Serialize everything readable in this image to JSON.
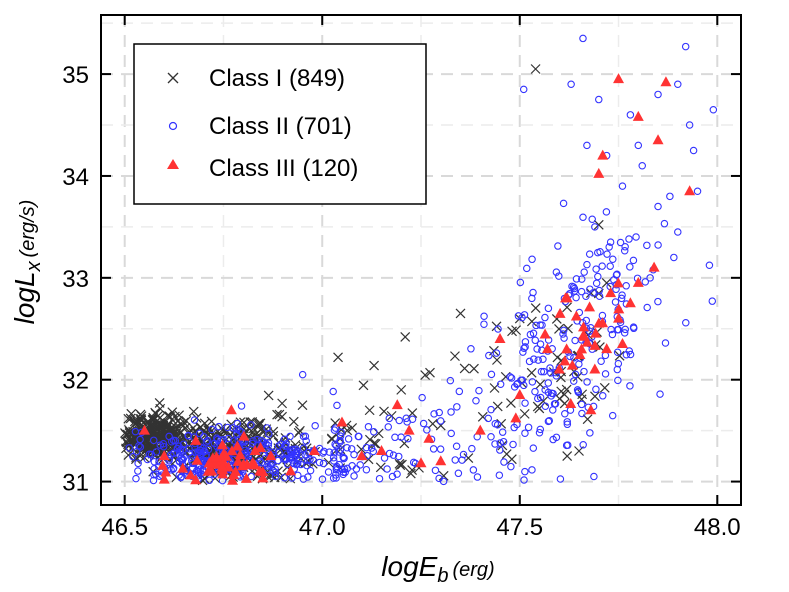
{
  "chart_data": {
    "type": "scatter",
    "title": "",
    "xlabel_main": "logE",
    "xlabel_sub": "b",
    "xlabel_unit": "(erg)",
    "ylabel_main": "logL",
    "ylabel_sub": "x",
    "ylabel_unit": "(erg/s)",
    "xlim": [
      46.44,
      48.06
    ],
    "ylim": [
      30.77,
      35.58
    ],
    "xticks": [
      46.5,
      47.0,
      47.5,
      48.0
    ],
    "xtick_labels": [
      "46.5",
      "47.0",
      "47.5",
      "48.0"
    ],
    "yticks": [
      31,
      32,
      33,
      34,
      35
    ],
    "ytick_labels": [
      "31",
      "32",
      "33",
      "34",
      "35"
    ],
    "grid": true,
    "legend_position": "top-left",
    "series": [
      {
        "name": "Class I (849)",
        "label": "Class I (849)",
        "marker": "x",
        "color": "#333333",
        "clusters": [
          {
            "cx": 46.58,
            "cy": 31.45,
            "sx": 0.05,
            "sy": 0.1,
            "n": 260
          },
          {
            "cx": 46.72,
            "cy": 31.35,
            "sx": 0.08,
            "sy": 0.15,
            "n": 170
          },
          {
            "cx": 46.85,
            "cy": 31.3,
            "sx": 0.07,
            "sy": 0.15,
            "n": 90
          },
          {
            "cx": 47.1,
            "cy": 31.35,
            "sx": 0.12,
            "sy": 0.25,
            "n": 40
          },
          {
            "cx": 47.45,
            "cy": 31.9,
            "sx": 0.1,
            "sy": 0.3,
            "n": 25
          },
          {
            "cx": 47.6,
            "cy": 32.3,
            "sx": 0.06,
            "sy": 0.35,
            "n": 30
          }
        ],
        "points": [
          [
            47.54,
            35.05
          ],
          [
            47.7,
            33.52
          ],
          [
            47.35,
            32.65
          ],
          [
            47.21,
            32.42
          ],
          [
            47.04,
            32.22
          ],
          [
            47.2,
            31.9
          ],
          [
            47.3,
            31.55
          ],
          [
            47.12,
            31.7
          ],
          [
            46.95,
            31.75
          ],
          [
            47.48,
            31.22
          ],
          [
            47.62,
            31.25
          ],
          [
            47.68,
            32.85
          ],
          [
            47.72,
            32.95
          ],
          [
            47.65,
            31.3
          ],
          [
            47.5,
            32.6
          ]
        ]
      },
      {
        "name": "Class II (701)",
        "label": "Class II (701)",
        "marker": "circle-open",
        "color": "#3333ff",
        "clusters": [
          {
            "cx": 46.7,
            "cy": 31.25,
            "sx": 0.09,
            "sy": 0.15,
            "n": 200
          },
          {
            "cx": 46.95,
            "cy": 31.25,
            "sx": 0.1,
            "sy": 0.14,
            "n": 140
          },
          {
            "cx": 47.25,
            "cy": 31.4,
            "sx": 0.13,
            "sy": 0.3,
            "n": 60
          },
          {
            "cx": 47.55,
            "cy": 32.1,
            "sx": 0.08,
            "sy": 0.45,
            "n": 120
          },
          {
            "cx": 47.72,
            "cy": 32.8,
            "sx": 0.08,
            "sy": 0.45,
            "n": 110
          }
        ],
        "points": [
          [
            47.66,
            35.35
          ],
          [
            47.92,
            35.27
          ],
          [
            47.99,
            34.65
          ],
          [
            47.94,
            34.25
          ],
          [
            47.93,
            34.5
          ],
          [
            47.51,
            34.85
          ],
          [
            47.63,
            34.9
          ],
          [
            47.7,
            34.75
          ],
          [
            47.85,
            34.8
          ],
          [
            47.78,
            34.6
          ],
          [
            47.72,
            34.2
          ],
          [
            47.89,
            33.2
          ],
          [
            47.9,
            34.9
          ],
          [
            47.88,
            33.8
          ],
          [
            47.95,
            33.85
          ],
          [
            47.81,
            34.1
          ],
          [
            47.76,
            33.9
          ],
          [
            47.83,
            33.0
          ],
          [
            47.73,
            33.35
          ],
          [
            47.69,
            33.5
          ],
          [
            47.9,
            33.45
          ],
          [
            47.85,
            33.7
          ],
          [
            47.67,
            34.3
          ],
          [
            47.8,
            34.3
          ]
        ]
      },
      {
        "name": "Class III (120)",
        "label": "Class III (120)",
        "marker": "triangle",
        "color": "#ff3333",
        "clusters": [
          {
            "cx": 46.75,
            "cy": 31.15,
            "sx": 0.06,
            "sy": 0.1,
            "n": 45
          },
          {
            "cx": 47.65,
            "cy": 32.4,
            "sx": 0.06,
            "sy": 0.3,
            "n": 20
          }
        ],
        "points": [
          [
            47.75,
            34.95
          ],
          [
            47.87,
            34.92
          ],
          [
            47.85,
            34.35
          ],
          [
            47.8,
            34.58
          ],
          [
            47.71,
            34.2
          ],
          [
            47.7,
            34.02
          ],
          [
            47.93,
            33.85
          ],
          [
            47.84,
            33.1
          ],
          [
            47.8,
            32.95
          ],
          [
            47.78,
            32.75
          ],
          [
            47.73,
            32.85
          ],
          [
            47.75,
            32.6
          ],
          [
            47.7,
            32.55
          ],
          [
            47.72,
            32.3
          ],
          [
            47.69,
            32.1
          ],
          [
            47.76,
            32.35
          ],
          [
            47.68,
            31.7
          ],
          [
            47.62,
            32.8
          ],
          [
            47.6,
            32.1
          ],
          [
            47.57,
            32.3
          ],
          [
            47.5,
            31.85
          ],
          [
            47.49,
            31.62
          ],
          [
            47.45,
            32.4
          ],
          [
            47.4,
            31.5
          ],
          [
            47.3,
            31.2
          ],
          [
            47.27,
            31.42
          ],
          [
            47.25,
            31.18
          ],
          [
            47.22,
            31.5
          ],
          [
            47.19,
            31.75
          ],
          [
            47.15,
            31.3
          ],
          [
            47.1,
            31.25
          ],
          [
            47.05,
            31.58
          ],
          [
            46.98,
            31.3
          ],
          [
            46.92,
            31.1
          ],
          [
            46.87,
            31.25
          ],
          [
            46.83,
            31.3
          ],
          [
            46.77,
            31.7
          ],
          [
            46.6,
            31.25
          ],
          [
            46.55,
            31.5
          ],
          [
            46.68,
            31.4
          ]
        ]
      }
    ]
  }
}
